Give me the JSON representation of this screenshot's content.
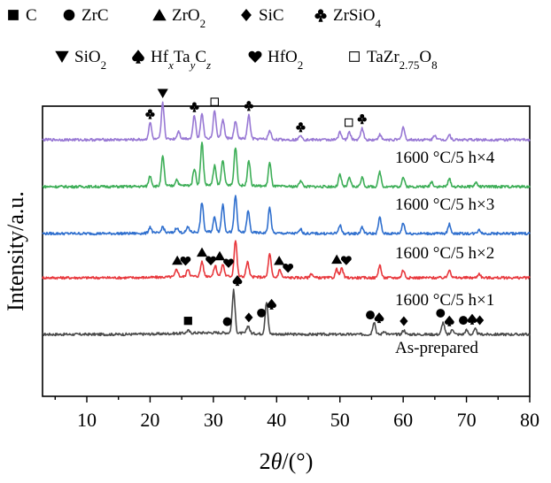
{
  "chart_data": {
    "type": "line",
    "xlabel": "2θ/(°)",
    "ylabel": "Intensity/a.u.",
    "xlim": [
      3,
      80
    ],
    "xticks": [
      10,
      20,
      30,
      40,
      50,
      60,
      70,
      80
    ],
    "grid": false,
    "legend": {
      "placement": "top",
      "entries": [
        {
          "symbol": "square-filled",
          "label": "C"
        },
        {
          "symbol": "circle-filled",
          "label": "ZrC"
        },
        {
          "symbol": "triangle-up",
          "label": "ZrO",
          "sub": "2"
        },
        {
          "symbol": "diamond",
          "label": "SiC"
        },
        {
          "symbol": "club",
          "label": "ZrSiO",
          "sub": "4"
        },
        {
          "symbol": "triangle-down",
          "label": "SiO",
          "sub": "2"
        },
        {
          "symbol": "spade",
          "label": "Hf",
          "parts": [
            [
              "Hf",
              ""
            ],
            [
              "x",
              "sub-i"
            ],
            [
              "Ta",
              ""
            ],
            [
              "y",
              "sub-i"
            ],
            [
              "C",
              ""
            ],
            [
              "z",
              "sub-i"
            ]
          ]
        },
        {
          "symbol": "heart",
          "label": "HfO",
          "sub": "2"
        },
        {
          "symbol": "square-open",
          "label": "TaZr",
          "parts": [
            [
              "TaZr",
              ""
            ],
            [
              "2.75",
              "sub"
            ],
            [
              "O",
              ""
            ],
            [
              "8",
              "sub"
            ]
          ]
        }
      ]
    },
    "series": [
      {
        "name": "As-prepared",
        "color": "#4a4a4a",
        "peaks": [
          [
            26.0,
            0.06
          ],
          [
            33.2,
            1.0
          ],
          [
            35.5,
            0.18
          ],
          [
            38.4,
            0.75
          ],
          [
            55.4,
            0.3
          ],
          [
            57.0,
            0.08
          ],
          [
            60.1,
            0.1
          ],
          [
            66.3,
            0.28
          ],
          [
            67.8,
            0.12
          ],
          [
            70.0,
            0.1
          ],
          [
            71.4,
            0.12
          ]
        ]
      },
      {
        "name": "1600 °C/5 h×1",
        "color": "#e8383d",
        "peaks": [
          [
            24.2,
            0.18
          ],
          [
            26.0,
            0.18
          ],
          [
            28.2,
            0.35
          ],
          [
            30.3,
            0.25
          ],
          [
            31.5,
            0.28
          ],
          [
            33.5,
            0.85
          ],
          [
            35.4,
            0.35
          ],
          [
            38.9,
            0.55
          ],
          [
            40.5,
            0.18
          ],
          [
            45.5,
            0.1
          ],
          [
            49.5,
            0.2
          ],
          [
            50.3,
            0.22
          ],
          [
            56.3,
            0.3
          ],
          [
            60.0,
            0.18
          ],
          [
            67.3,
            0.2
          ],
          [
            72.0,
            0.1
          ]
        ]
      },
      {
        "name": "1600 °C/5 h×2",
        "color": "#2f6fce",
        "peaks": [
          [
            20.0,
            0.15
          ],
          [
            22.0,
            0.15
          ],
          [
            24.2,
            0.12
          ],
          [
            26.0,
            0.12
          ],
          [
            28.2,
            0.7
          ],
          [
            30.2,
            0.35
          ],
          [
            31.5,
            0.65
          ],
          [
            33.5,
            0.85
          ],
          [
            35.5,
            0.5
          ],
          [
            38.9,
            0.6
          ],
          [
            43.8,
            0.1
          ],
          [
            50.0,
            0.2
          ],
          [
            53.5,
            0.15
          ],
          [
            56.3,
            0.38
          ],
          [
            60.0,
            0.25
          ],
          [
            67.3,
            0.22
          ],
          [
            72.0,
            0.1
          ]
        ]
      },
      {
        "name": "1600 °C/5 h×3",
        "color": "#3dae57",
        "peaks": [
          [
            20.0,
            0.25
          ],
          [
            22.0,
            0.7
          ],
          [
            24.2,
            0.15
          ],
          [
            27.0,
            0.4
          ],
          [
            28.2,
            1.0
          ],
          [
            30.2,
            0.45
          ],
          [
            31.5,
            0.6
          ],
          [
            33.5,
            0.9
          ],
          [
            35.6,
            0.6
          ],
          [
            38.9,
            0.55
          ],
          [
            43.8,
            0.15
          ],
          [
            50.0,
            0.28
          ],
          [
            51.5,
            0.2
          ],
          [
            53.5,
            0.22
          ],
          [
            56.3,
            0.35
          ],
          [
            60.0,
            0.22
          ],
          [
            64.5,
            0.12
          ],
          [
            67.3,
            0.18
          ],
          [
            71.5,
            0.1
          ]
        ]
      },
      {
        "name": "1600 °C/5 h×4",
        "color": "#9878d4",
        "peaks": [
          [
            20.0,
            0.4
          ],
          [
            22.0,
            0.85
          ],
          [
            24.5,
            0.18
          ],
          [
            27.0,
            0.55
          ],
          [
            28.2,
            0.6
          ],
          [
            30.2,
            0.65
          ],
          [
            31.5,
            0.45
          ],
          [
            33.5,
            0.4
          ],
          [
            35.6,
            0.55
          ],
          [
            38.9,
            0.2
          ],
          [
            43.8,
            0.12
          ],
          [
            50.0,
            0.2
          ],
          [
            51.5,
            0.18
          ],
          [
            53.5,
            0.28
          ],
          [
            56.3,
            0.12
          ],
          [
            60.0,
            0.3
          ],
          [
            65.0,
            0.12
          ],
          [
            67.3,
            0.12
          ]
        ]
      }
    ],
    "annotations": [
      {
        "series": 0,
        "symbol": "square-filled",
        "x": 26.0
      },
      {
        "series": 0,
        "symbol": "circle-filled",
        "x": 32.2
      },
      {
        "series": 0,
        "symbol": "spade",
        "x": 33.8
      },
      {
        "series": 0,
        "symbol": "diamond",
        "x": 35.6
      },
      {
        "series": 0,
        "symbol": "circle-filled",
        "x": 37.6
      },
      {
        "series": 0,
        "symbol": "spade",
        "x": 39.2
      },
      {
        "series": 0,
        "symbol": "circle-filled",
        "x": 54.8
      },
      {
        "series": 0,
        "symbol": "spade",
        "x": 56.2
      },
      {
        "series": 0,
        "symbol": "diamond",
        "x": 60.1
      },
      {
        "series": 0,
        "symbol": "circle-filled",
        "x": 65.9
      },
      {
        "series": 0,
        "symbol": "spade",
        "x": 67.3
      },
      {
        "series": 0,
        "symbol": "circle-filled",
        "x": 69.5
      },
      {
        "series": 0,
        "symbol": "spade",
        "x": 70.9
      },
      {
        "series": 0,
        "symbol": "diamond",
        "x": 72.1
      },
      {
        "series": 1,
        "symbol": "triangle-up",
        "x": 24.3
      },
      {
        "series": 1,
        "symbol": "heart",
        "x": 25.6
      },
      {
        "series": 1,
        "symbol": "triangle-up",
        "x": 28.2
      },
      {
        "series": 1,
        "symbol": "heart",
        "x": 29.6
      },
      {
        "series": 1,
        "symbol": "triangle-up",
        "x": 31.0
      },
      {
        "series": 1,
        "symbol": "heart",
        "x": 32.4
      },
      {
        "series": 1,
        "symbol": "triangle-up",
        "x": 40.4
      },
      {
        "series": 1,
        "symbol": "heart",
        "x": 41.8
      },
      {
        "series": 1,
        "symbol": "triangle-up",
        "x": 49.5
      },
      {
        "series": 1,
        "symbol": "heart",
        "x": 51.0
      },
      {
        "series": 4,
        "symbol": "club",
        "x": 20.0
      },
      {
        "series": 4,
        "symbol": "triangle-down",
        "x": 22.0
      },
      {
        "series": 4,
        "symbol": "club",
        "x": 27.0
      },
      {
        "series": 4,
        "symbol": "square-open",
        "x": 30.2
      },
      {
        "series": 4,
        "symbol": "club",
        "x": 35.6
      },
      {
        "series": 4,
        "symbol": "club",
        "x": 43.8
      },
      {
        "series": 4,
        "symbol": "square-open",
        "x": 51.4
      },
      {
        "series": 4,
        "symbol": "club",
        "x": 53.5
      }
    ]
  }
}
